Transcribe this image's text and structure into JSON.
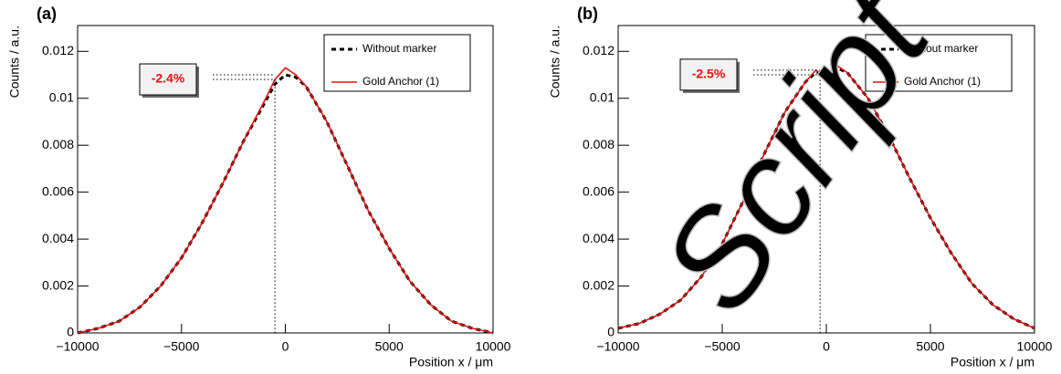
{
  "chart_data": [
    {
      "type": "line",
      "panel_label": "(a)",
      "ylabel": "Counts / a.u.",
      "xlabel": "Position x / μm",
      "x": [
        -10000,
        -9000,
        -8000,
        -7000,
        -6000,
        -5000,
        -4000,
        -3000,
        -2000,
        -1000,
        -500,
        0,
        500,
        1000,
        2000,
        3000,
        4000,
        5000,
        6000,
        7000,
        8000,
        9000,
        10000
      ],
      "series": [
        {
          "name": "Without marker",
          "color": "#000000",
          "dash": true,
          "values": [
            0.0,
            0.0002,
            0.0005,
            0.0011,
            0.002,
            0.0032,
            0.0047,
            0.0064,
            0.0082,
            0.0098,
            0.0106,
            0.011,
            0.0109,
            0.0105,
            0.009,
            0.0071,
            0.0052,
            0.0036,
            0.0022,
            0.0012,
            0.0005,
            0.0002,
            0.0
          ]
        },
        {
          "name": "Gold Anchor (1)",
          "color": "#e8120f",
          "dash": false,
          "values": [
            0.0,
            0.0002,
            0.0005,
            0.0011,
            0.002,
            0.0032,
            0.0047,
            0.0064,
            0.0082,
            0.0099,
            0.0108,
            0.0113,
            0.011,
            0.0105,
            0.009,
            0.0071,
            0.0052,
            0.0036,
            0.0022,
            0.0012,
            0.0005,
            0.0002,
            0.0
          ]
        }
      ],
      "annotation": {
        "text": "-2.4%",
        "x": -500,
        "y_low": 0.0108,
        "y_high": 0.011
      },
      "xlim": [
        -10000,
        10000
      ],
      "xticks": [
        {
          "value": -10000,
          "label": "−10000"
        },
        {
          "value": -5000,
          "label": "−5000"
        },
        0,
        5000,
        10000
      ],
      "ylim": [
        0,
        0.0131
      ],
      "yticks": [
        0,
        0.002,
        0.004,
        0.006,
        0.008,
        0.01,
        0.012
      ],
      "legend": "upper right"
    },
    {
      "type": "line",
      "panel_label": "(b)",
      "ylabel": "Counts / a.u.",
      "xlabel": "Position x / μm",
      "x": [
        -10000,
        -9000,
        -8000,
        -7000,
        -6000,
        -5000,
        -4000,
        -3000,
        -2000,
        -1000,
        -500,
        0,
        500,
        1000,
        2000,
        3000,
        4000,
        5000,
        6000,
        7000,
        8000,
        9000,
        10000
      ],
      "series": [
        {
          "name": "Without marker",
          "color": "#000000",
          "dash": true,
          "values": [
            0.0002,
            0.0004,
            0.0008,
            0.0014,
            0.0024,
            0.0038,
            0.0056,
            0.0076,
            0.0094,
            0.0107,
            0.0111,
            0.0111,
            0.0113,
            0.0111,
            0.01,
            0.0084,
            0.0066,
            0.0049,
            0.0034,
            0.0021,
            0.0012,
            0.0006,
            0.0002
          ]
        },
        {
          "name": "Gold Anchor (1)",
          "color": "#e8120f",
          "dash": false,
          "values": [
            0.0002,
            0.0004,
            0.0008,
            0.0014,
            0.0024,
            0.0038,
            0.0056,
            0.0076,
            0.0094,
            0.0107,
            0.0112,
            0.0109,
            0.0114,
            0.0111,
            0.01,
            0.0084,
            0.0066,
            0.0049,
            0.0034,
            0.0021,
            0.0012,
            0.0006,
            0.0002
          ]
        }
      ],
      "annotation": {
        "text": "-2.5%",
        "x": -300,
        "y_low": 0.011,
        "y_high": 0.0112
      },
      "xlim": [
        -10000,
        10000
      ],
      "xticks": [
        {
          "value": -10000,
          "label": "−10000"
        },
        {
          "value": -5000,
          "label": "−5000"
        },
        0,
        5000,
        10000
      ],
      "ylim": [
        0,
        0.0131
      ],
      "yticks": [
        0,
        0.002,
        0.004,
        0.006,
        0.008,
        0.01,
        0.012
      ],
      "legend": "upper right"
    }
  ],
  "watermark": "Script"
}
